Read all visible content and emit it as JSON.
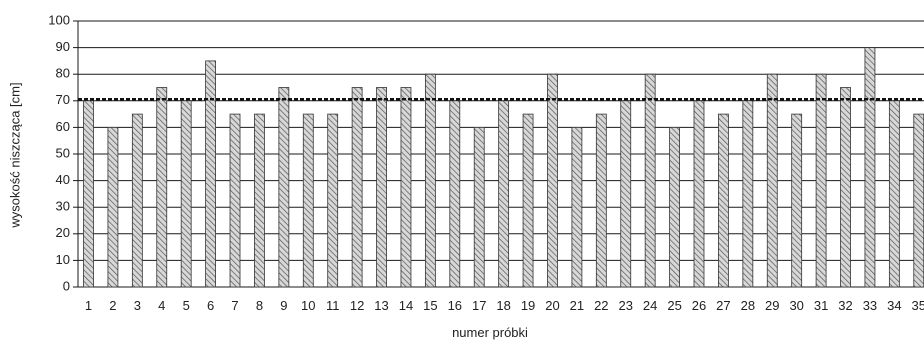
{
  "chart_data": {
    "type": "bar",
    "title": "",
    "xlabel": "numer próbki",
    "ylabel": "wysokość niszcząca [cm]",
    "ylim": [
      0,
      100
    ],
    "yticks": [
      "0",
      "10",
      "20",
      "30",
      "40",
      "50",
      "60",
      "70",
      "80",
      "90",
      "100"
    ],
    "grid": true,
    "categories": [
      "1",
      "2",
      "3",
      "4",
      "5",
      "6",
      "7",
      "8",
      "9",
      "10",
      "11",
      "12",
      "13",
      "14",
      "15",
      "16",
      "17",
      "18",
      "19",
      "20",
      "21",
      "22",
      "23",
      "24",
      "25",
      "26",
      "27",
      "28",
      "29",
      "30",
      "31",
      "32",
      "33",
      "34",
      "35"
    ],
    "values": [
      70,
      60,
      65,
      75,
      70,
      85,
      65,
      65,
      75,
      65,
      65,
      75,
      75,
      75,
      80,
      70,
      60,
      70,
      65,
      80,
      60,
      65,
      70,
      80,
      60,
      70,
      65,
      70,
      80,
      65,
      80,
      75,
      90,
      70,
      65
    ],
    "reference_line": {
      "value": 70.6,
      "style": "dashed"
    },
    "colors": {
      "bar_fill": "#d8d8d8",
      "bar_hatch": "#555555",
      "bar_stroke": "#333333",
      "grid": "#1a1a1a"
    }
  }
}
